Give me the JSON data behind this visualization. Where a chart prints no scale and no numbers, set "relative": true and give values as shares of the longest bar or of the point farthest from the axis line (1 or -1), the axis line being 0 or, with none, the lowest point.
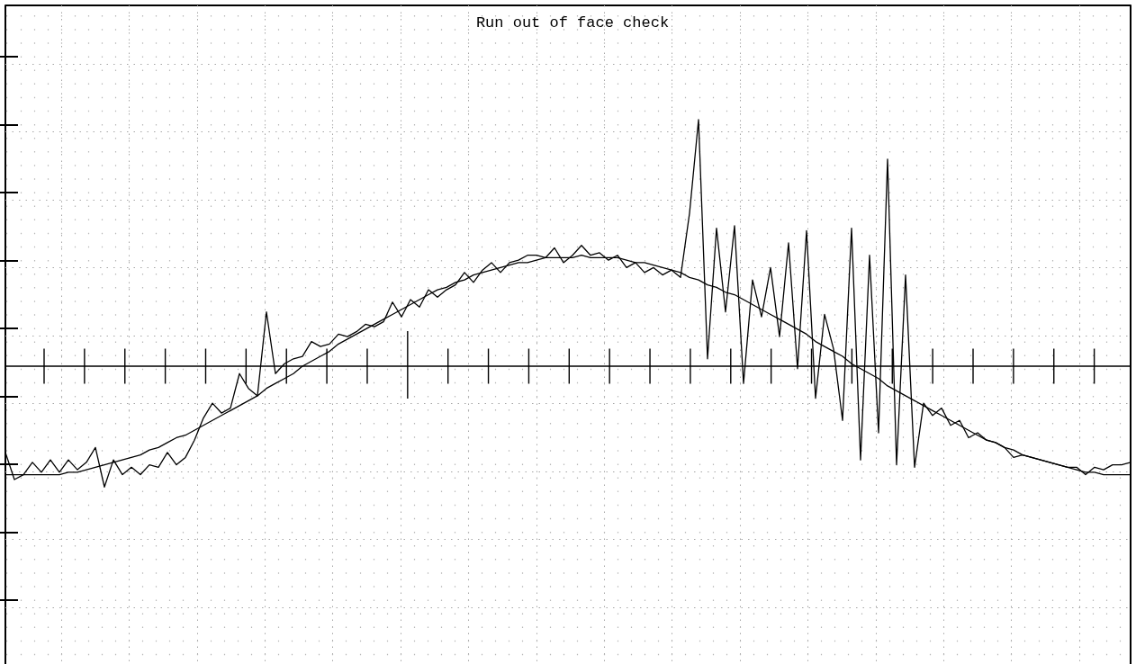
{
  "chart_data": {
    "type": "line",
    "title": "Run out of face check",
    "relative": true,
    "grid": true,
    "categories": [
      null,
      null,
      null,
      null,
      null,
      null,
      null,
      null,
      null,
      null,
      null,
      null,
      null,
      null,
      null,
      null,
      null,
      null,
      null,
      null,
      null,
      null,
      null,
      null,
      null,
      null,
      null,
      null,
      null,
      null,
      null,
      null,
      null,
      null,
      null,
      null,
      null,
      null,
      null,
      null,
      null,
      null,
      null,
      null,
      null,
      null,
      null,
      null,
      null,
      null,
      null,
      null,
      null,
      null,
      null,
      null,
      null,
      null,
      null,
      null,
      null,
      null,
      null,
      null,
      null,
      null,
      null,
      null,
      null,
      null,
      null,
      null,
      null,
      null,
      null,
      null,
      null,
      null,
      null,
      null,
      null,
      null,
      null,
      null,
      null,
      null,
      null,
      null,
      null,
      null,
      null,
      null,
      null,
      null,
      null,
      null,
      null,
      null,
      null,
      null,
      null,
      null,
      null,
      null,
      null,
      null,
      null,
      null,
      null,
      null,
      null,
      null,
      null,
      null,
      null,
      null,
      null,
      null,
      null,
      null,
      null,
      null,
      null,
      null,
      null,
      null
    ],
    "series": [
      {
        "color": "#000000",
        "values": [
          -0.35,
          -0.46,
          -0.44,
          -0.39,
          -0.43,
          -0.38,
          -0.43,
          -0.38,
          -0.42,
          -0.39,
          -0.33,
          -0.49,
          -0.38,
          -0.44,
          -0.41,
          -0.44,
          -0.4,
          -0.41,
          -0.35,
          -0.4,
          -0.37,
          -0.3,
          -0.21,
          -0.15,
          -0.19,
          -0.17,
          -0.03,
          -0.09,
          -0.12,
          0.22,
          -0.03,
          0.01,
          0.03,
          0.04,
          0.1,
          0.08,
          0.09,
          0.13,
          0.12,
          0.14,
          0.17,
          0.16,
          0.18,
          0.26,
          0.2,
          0.27,
          0.24,
          0.31,
          0.28,
          0.31,
          0.33,
          0.38,
          0.34,
          0.39,
          0.42,
          0.38,
          0.42,
          0.43,
          0.45,
          0.45,
          0.44,
          0.48,
          0.42,
          0.45,
          0.49,
          0.45,
          0.46,
          0.43,
          0.45,
          0.4,
          0.42,
          0.38,
          0.4,
          0.37,
          0.39,
          0.36,
          0.62,
          1.0,
          0.03,
          0.56,
          0.22,
          0.57,
          -0.07,
          0.35,
          0.2,
          0.4,
          0.12,
          0.5,
          -0.01,
          0.55,
          -0.13,
          0.21,
          0.07,
          -0.22,
          0.56,
          -0.38,
          0.45,
          -0.27,
          0.84,
          -0.4,
          0.37,
          -0.41,
          -0.15,
          -0.2,
          -0.17,
          -0.24,
          -0.22,
          -0.29,
          -0.27,
          -0.3,
          -0.31,
          -0.33,
          -0.37,
          -0.36,
          -0.37,
          -0.38,
          -0.39,
          -0.4,
          -0.41,
          -0.41,
          -0.44,
          -0.41,
          -0.42,
          -0.4,
          -0.4,
          -0.39
        ]
      },
      {
        "color": "#000000",
        "values": [
          -0.44,
          -0.44,
          -0.44,
          -0.44,
          -0.44,
          -0.44,
          -0.44,
          -0.43,
          -0.43,
          -0.42,
          -0.41,
          -0.4,
          -0.39,
          -0.38,
          -0.37,
          -0.36,
          -0.34,
          -0.33,
          -0.31,
          -0.29,
          -0.28,
          -0.26,
          -0.24,
          -0.22,
          -0.2,
          -0.18,
          -0.16,
          -0.14,
          -0.12,
          -0.09,
          -0.07,
          -0.05,
          -0.03,
          0.0,
          0.02,
          0.04,
          0.06,
          0.09,
          0.11,
          0.13,
          0.15,
          0.17,
          0.19,
          0.21,
          0.23,
          0.25,
          0.27,
          0.29,
          0.31,
          0.32,
          0.34,
          0.35,
          0.37,
          0.38,
          0.39,
          0.4,
          0.41,
          0.42,
          0.42,
          0.43,
          0.44,
          0.44,
          0.44,
          0.44,
          0.45,
          0.44,
          0.44,
          0.44,
          0.44,
          0.43,
          0.42,
          0.42,
          0.41,
          0.4,
          0.39,
          0.38,
          0.36,
          0.35,
          0.33,
          0.32,
          0.3,
          0.29,
          0.27,
          0.25,
          0.23,
          0.21,
          0.19,
          0.17,
          0.15,
          0.13,
          0.1,
          0.08,
          0.06,
          0.04,
          0.01,
          -0.01,
          -0.03,
          -0.05,
          -0.08,
          -0.1,
          -0.12,
          -0.14,
          -0.16,
          -0.18,
          -0.2,
          -0.22,
          -0.24,
          -0.26,
          -0.28,
          -0.3,
          -0.31,
          -0.33,
          -0.34,
          -0.36,
          -0.37,
          -0.38,
          -0.39,
          -0.4,
          -0.41,
          -0.42,
          -0.43,
          -0.43,
          -0.44,
          -0.44,
          -0.44,
          -0.44
        ]
      }
    ]
  }
}
